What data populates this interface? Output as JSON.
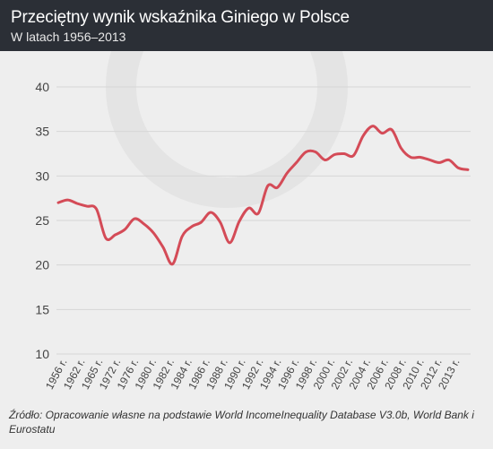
{
  "header": {
    "title": "Przeciętny wynik wskaźnika Giniego w Polsce",
    "subtitle": "W latach 1956–2013"
  },
  "source": "Źródło: Opracowanie własne na podstawie World IncomeInequality Database V3.0b, World Bank i Eurostatu",
  "colors": {
    "header_bg": "#2b2f36",
    "background": "#eeeeee",
    "line": "#d44b57",
    "grid": "#d6d6d6"
  },
  "chart_data": {
    "type": "line",
    "title": "Przeciętny wynik wskaźnika Giniego w Polsce",
    "subtitle": "W latach 1956–2013",
    "xlabel": "",
    "ylabel": "",
    "ylim": [
      10,
      40
    ],
    "yticks": [
      10,
      15,
      20,
      25,
      30,
      35,
      40
    ],
    "grid": "horizontal",
    "xtick_labels": [
      "1956 r.",
      "1962 r.",
      "1965 r.",
      "1972 r.",
      "1976 r.",
      "1980 r.",
      "1982 r.",
      "1984 r.",
      "1986 r.",
      "1988 r.",
      "1990 r.",
      "1992 r.",
      "1994 r.",
      "1996 r.",
      "1998 r.",
      "2000 r.",
      "2002 r.",
      "2004 r.",
      "2006 r.",
      "2008 r.",
      "2010 r.",
      "2012 r.",
      "2013 r."
    ],
    "series": [
      {
        "values": [
          27.0,
          27.3,
          26.9,
          26.6,
          26.3,
          23.0,
          23.4,
          24.0,
          25.2,
          24.6,
          23.6,
          22.0,
          20.1,
          23.2,
          24.3,
          24.8,
          25.9,
          24.8,
          22.5,
          24.9,
          26.4,
          25.8,
          28.9,
          28.7,
          30.3,
          31.5,
          32.7,
          32.7,
          31.8,
          32.4,
          32.5,
          32.3,
          34.5,
          35.6,
          34.8,
          35.2,
          33.1,
          32.1,
          32.1,
          31.8,
          31.5,
          31.8,
          30.9,
          30.7
        ]
      }
    ]
  }
}
